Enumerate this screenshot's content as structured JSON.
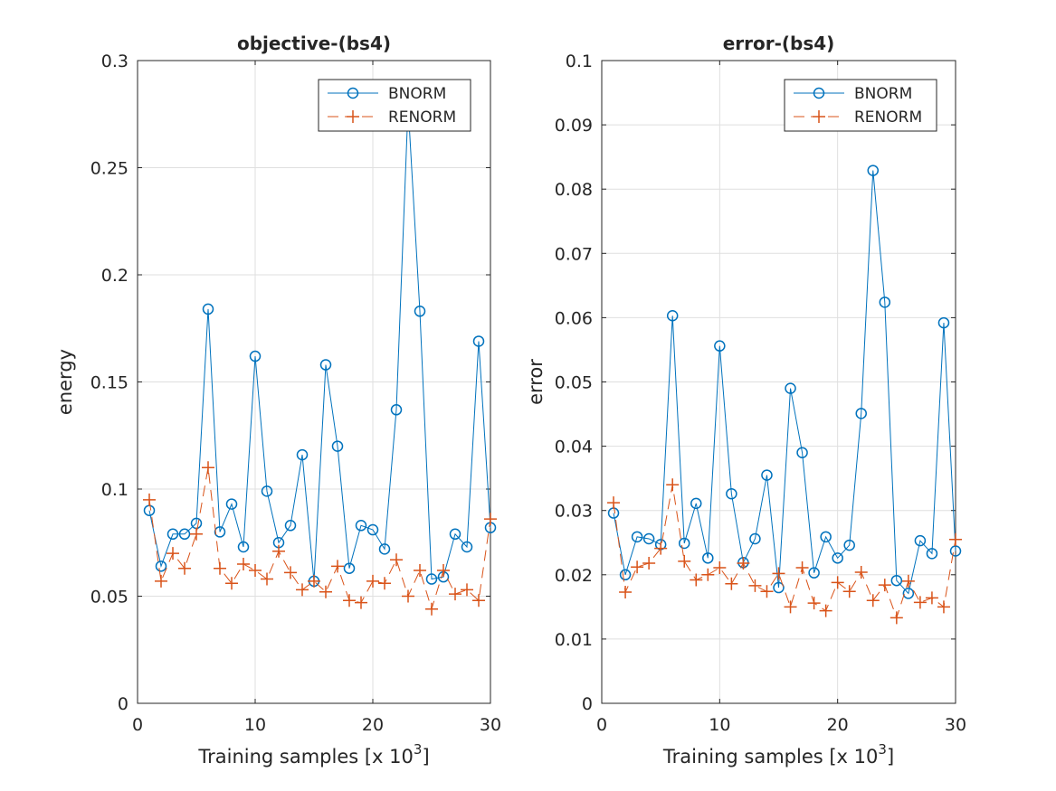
{
  "chart_data": [
    {
      "type": "line",
      "title": "objective-(bs4)",
      "xlabel": "Training samples [x 10",
      "xlabel_sup": "3",
      "xlabel_end": "]",
      "ylabel": "energy",
      "xlim": [
        0,
        30
      ],
      "ylim": [
        0,
        0.3
      ],
      "xticks": [
        0,
        10,
        20,
        30
      ],
      "xtick_labels": [
        "0",
        "10",
        "20",
        "30"
      ],
      "yticks": [
        0,
        0.05,
        0.1,
        0.15,
        0.2,
        0.25,
        0.3
      ],
      "ytick_labels": [
        "0",
        "0.05",
        "0.1",
        "0.15",
        "0.2",
        "0.25",
        "0.3"
      ],
      "grid": true,
      "legend_position": "top-right",
      "x": [
        1,
        2,
        3,
        4,
        5,
        6,
        7,
        8,
        9,
        10,
        11,
        12,
        13,
        14,
        15,
        16,
        17,
        18,
        19,
        20,
        21,
        22,
        23,
        24,
        25,
        26,
        27,
        28,
        29,
        30
      ],
      "series": [
        {
          "name": "BNORM",
          "color": "#0072BD",
          "marker": "circle",
          "line": "solid",
          "values": [
            0.09,
            0.064,
            0.079,
            0.079,
            0.084,
            0.184,
            0.08,
            0.093,
            0.073,
            0.162,
            0.099,
            0.075,
            0.083,
            0.116,
            0.057,
            0.158,
            0.12,
            0.063,
            0.083,
            0.081,
            0.072,
            0.137,
            0.279,
            0.183,
            0.058,
            0.059,
            0.079,
            0.073,
            0.169,
            0.082
          ]
        },
        {
          "name": "RENORM",
          "color": "#D95319",
          "marker": "plus",
          "line": "dashed",
          "values": [
            0.095,
            0.057,
            0.07,
            0.063,
            0.079,
            0.11,
            0.063,
            0.056,
            0.065,
            0.062,
            0.058,
            0.071,
            0.061,
            0.053,
            0.057,
            0.052,
            0.064,
            0.048,
            0.047,
            0.057,
            0.056,
            0.067,
            0.05,
            0.062,
            0.044,
            0.062,
            0.051,
            0.053,
            0.048,
            0.086
          ]
        }
      ]
    },
    {
      "type": "line",
      "title": "error-(bs4)",
      "xlabel": "Training samples [x 10",
      "xlabel_sup": "3",
      "xlabel_end": "]",
      "ylabel": "error",
      "xlim": [
        0,
        30
      ],
      "ylim": [
        0,
        0.1
      ],
      "xticks": [
        0,
        10,
        20,
        30
      ],
      "xtick_labels": [
        "0",
        "10",
        "20",
        "30"
      ],
      "yticks": [
        0,
        0.01,
        0.02,
        0.03,
        0.04,
        0.05,
        0.06,
        0.07,
        0.08,
        0.09,
        0.1
      ],
      "ytick_labels": [
        "0",
        "0.01",
        "0.02",
        "0.03",
        "0.04",
        "0.05",
        "0.06",
        "0.07",
        "0.08",
        "0.09",
        "0.1"
      ],
      "grid": true,
      "legend_position": "top-right",
      "x": [
        1,
        2,
        3,
        4,
        5,
        6,
        7,
        8,
        9,
        10,
        11,
        12,
        13,
        14,
        15,
        16,
        17,
        18,
        19,
        20,
        21,
        22,
        23,
        24,
        25,
        26,
        27,
        28,
        29,
        30
      ],
      "series": [
        {
          "name": "BNORM",
          "color": "#0072BD",
          "marker": "circle",
          "line": "solid",
          "values": [
            0.0296,
            0.02,
            0.0259,
            0.0256,
            0.0247,
            0.0603,
            0.0249,
            0.0311,
            0.0226,
            0.0556,
            0.0326,
            0.0219,
            0.0256,
            0.0355,
            0.018,
            0.049,
            0.039,
            0.0203,
            0.0259,
            0.0226,
            0.0246,
            0.0451,
            0.0829,
            0.0624,
            0.0191,
            0.0171,
            0.0253,
            0.0233,
            0.0592,
            0.0237
          ]
        },
        {
          "name": "RENORM",
          "color": "#D95319",
          "marker": "plus",
          "line": "dashed",
          "values": [
            0.0312,
            0.0173,
            0.0212,
            0.0218,
            0.0241,
            0.034,
            0.0221,
            0.0192,
            0.02,
            0.0211,
            0.0186,
            0.0218,
            0.0183,
            0.0174,
            0.0202,
            0.015,
            0.0211,
            0.0156,
            0.0144,
            0.0188,
            0.0174,
            0.0204,
            0.016,
            0.0184,
            0.0133,
            0.019,
            0.0157,
            0.0164,
            0.015,
            0.0255
          ]
        }
      ]
    }
  ]
}
